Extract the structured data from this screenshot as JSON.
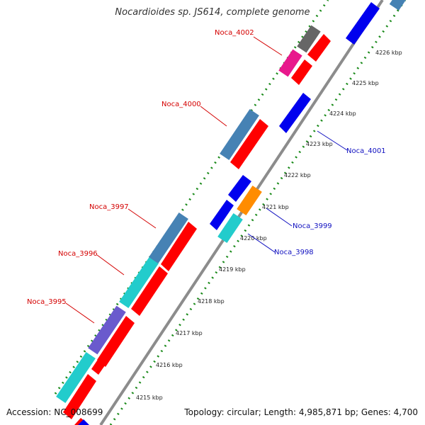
{
  "title": "Nocardioides sp. JS614, complete genome",
  "accession": "Accession: NC_008699",
  "summary": "Topology: circular; Length: 4,985,871 bp; Genes: 4,700",
  "colors": {
    "backbone": "#8c8c8c",
    "ticks": "#1a8a1a",
    "forward_label": "#d40000",
    "reverse_label": "#1010c0"
  },
  "ticks": [
    {
      "label": "4215 kbp"
    },
    {
      "label": "4216 kbp"
    },
    {
      "label": "4217 kbp"
    },
    {
      "label": "4218 kbp"
    },
    {
      "label": "4219 kbp"
    },
    {
      "label": "4220 kbp"
    },
    {
      "label": "4221 kbp"
    },
    {
      "label": "4222 kbp"
    },
    {
      "label": "4223 kbp"
    },
    {
      "label": "4224 kbp"
    },
    {
      "label": "4225 kbp"
    },
    {
      "label": "4226 kbp"
    }
  ],
  "gene_labels": [
    {
      "name": "Noca_4002",
      "strand": "forward"
    },
    {
      "name": "Noca_4000",
      "strand": "forward"
    },
    {
      "name": "Noca_3997",
      "strand": "forward"
    },
    {
      "name": "Noca_3996",
      "strand": "forward"
    },
    {
      "name": "Noca_3995",
      "strand": "forward"
    },
    {
      "name": "Noca_4001",
      "strand": "reverse"
    },
    {
      "name": "Noca_3999",
      "strand": "reverse"
    },
    {
      "name": "Noca_3998",
      "strand": "reverse"
    }
  ]
}
